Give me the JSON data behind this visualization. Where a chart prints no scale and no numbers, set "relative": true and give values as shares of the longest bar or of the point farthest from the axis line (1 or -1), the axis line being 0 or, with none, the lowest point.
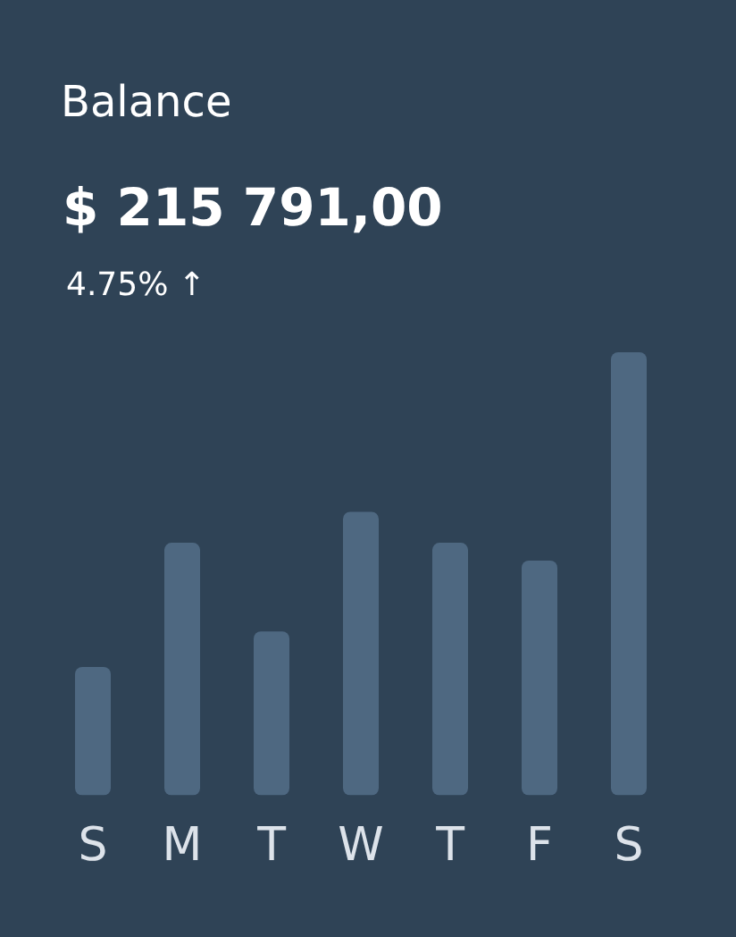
{
  "chart_data": {
    "type": "bar",
    "title": "Balance",
    "subtitle": "$ 215 791,00",
    "annotations": [
      "4.75% ↑"
    ],
    "categories": [
      "S",
      "M",
      "T",
      "W",
      "T",
      "F",
      "S"
    ],
    "values": [
      0.29,
      0.57,
      0.37,
      0.64,
      0.57,
      0.53,
      1
    ],
    "color": "#4e6881",
    "relative": true
  }
}
